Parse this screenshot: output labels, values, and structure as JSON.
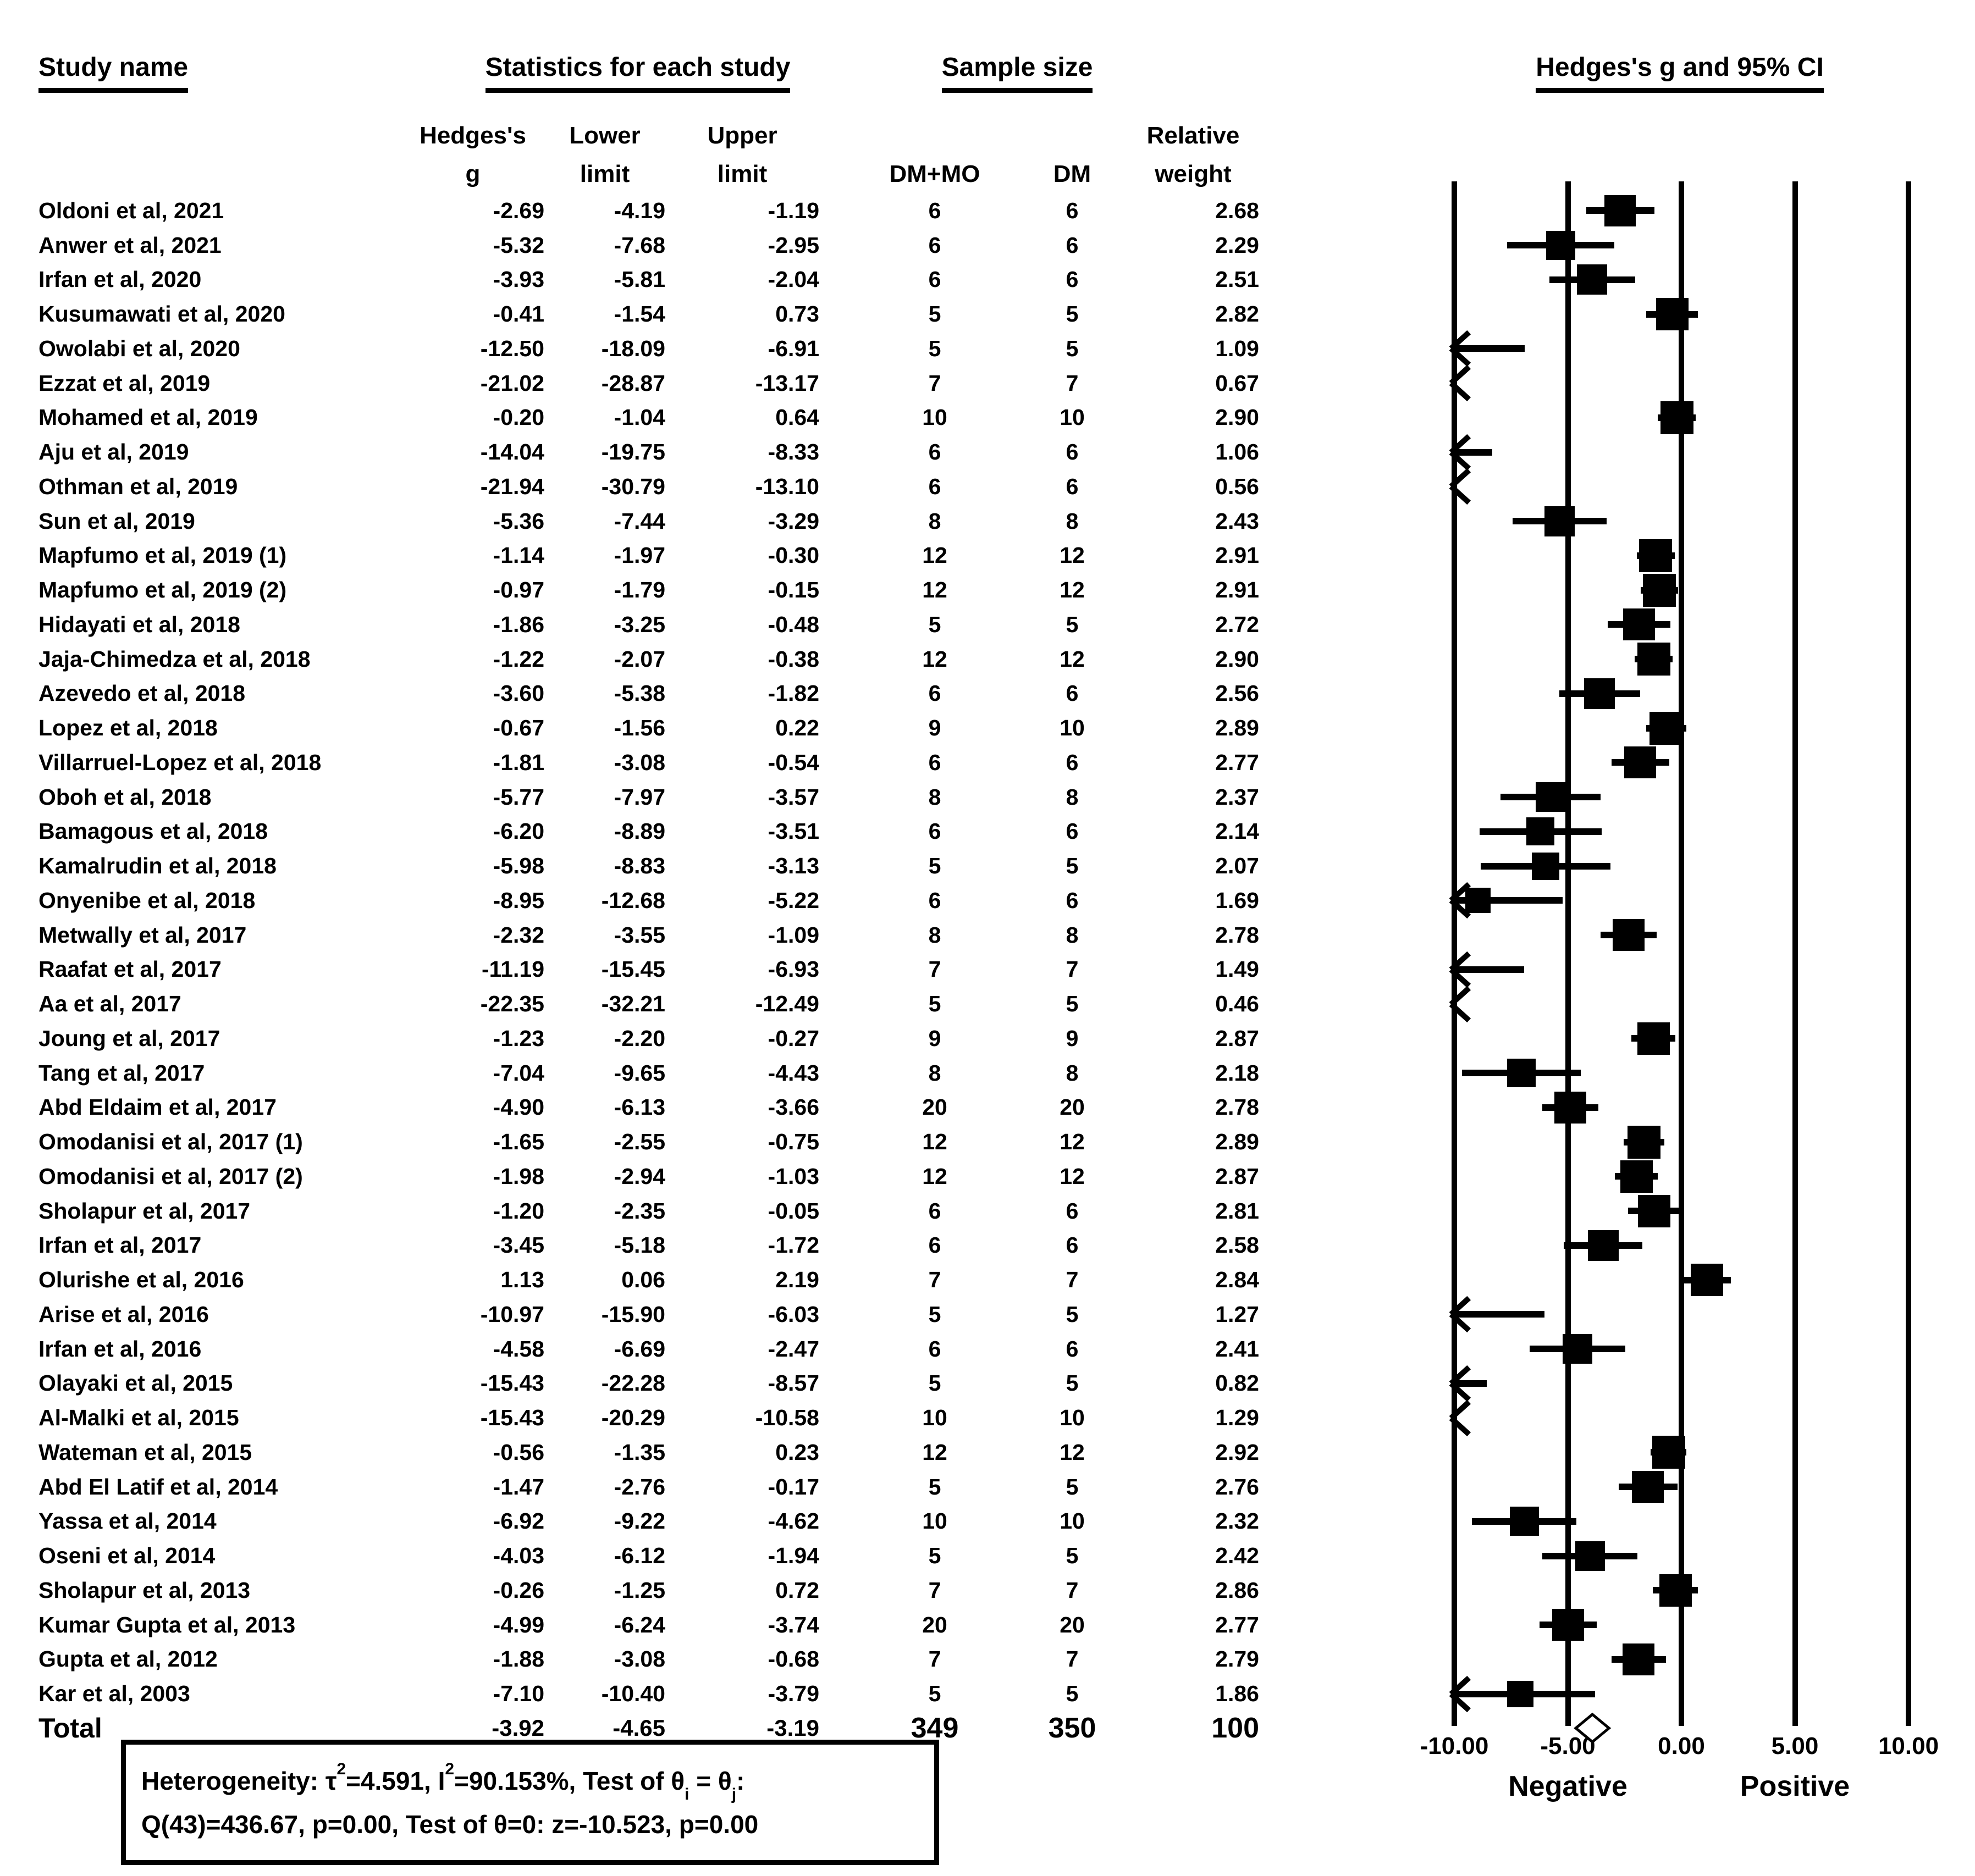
{
  "header": {
    "study_name": "Study name",
    "stats_group": "Statistics for each study",
    "sample_group": "Sample size",
    "plot_title": "Hedges's g and 95% CI",
    "sub": {
      "g1": "Hedges's",
      "g2": "g",
      "lo1": "Lower",
      "lo2": "limit",
      "up1": "Upper",
      "up2": "limit",
      "n1": "DM+MO",
      "n2": "DM",
      "w1": "Relative",
      "w2": "weight"
    }
  },
  "chart_data": {
    "type": "scatter",
    "variant": "forest-plot",
    "title": "Hedges's g and 95% CI",
    "xlim": [
      -10,
      10
    ],
    "x_tick_values": [
      -10,
      -5,
      0,
      5,
      10
    ],
    "x_ticks": [
      "-10.00",
      "-5.00",
      "0.00",
      "5.00",
      "10.00"
    ],
    "xlabel_negative": "Negative",
    "xlabel_positive": "Positive",
    "grid": "vertical-lines-at-ticks",
    "marker": "black-square-sized-by-weight",
    "studies": [
      {
        "name": "Oldoni et al, 2021",
        "g": "-2.69",
        "ll": "-4.19",
        "ul": "-1.19",
        "n1": "6",
        "n2": "6",
        "w": "2.68",
        "gv": -2.69,
        "llv": -4.19,
        "ulv": -1.19,
        "wv": 2.68
      },
      {
        "name": "Anwer et al, 2021",
        "g": "-5.32",
        "ll": "-7.68",
        "ul": "-2.95",
        "n1": "6",
        "n2": "6",
        "w": "2.29",
        "gv": -5.32,
        "llv": -7.68,
        "ulv": -2.95,
        "wv": 2.29
      },
      {
        "name": "Irfan et al, 2020",
        "g": "-3.93",
        "ll": "-5.81",
        "ul": "-2.04",
        "n1": "6",
        "n2": "6",
        "w": "2.51",
        "gv": -3.93,
        "llv": -5.81,
        "ulv": -2.04,
        "wv": 2.51
      },
      {
        "name": "Kusumawati et al, 2020",
        "g": "-0.41",
        "ll": "-1.54",
        "ul": "0.73",
        "n1": "5",
        "n2": "5",
        "w": "2.82",
        "gv": -0.41,
        "llv": -1.54,
        "ulv": 0.73,
        "wv": 2.82
      },
      {
        "name": "Owolabi et al, 2020",
        "g": "-12.50",
        "ll": "-18.09",
        "ul": "-6.91",
        "n1": "5",
        "n2": "5",
        "w": "1.09",
        "gv": -12.5,
        "llv": -18.09,
        "ulv": -6.91,
        "wv": 1.09
      },
      {
        "name": "Ezzat et al, 2019",
        "g": "-21.02",
        "ll": "-28.87",
        "ul": "-13.17",
        "n1": "7",
        "n2": "7",
        "w": "0.67",
        "gv": -21.02,
        "llv": -28.87,
        "ulv": -13.17,
        "wv": 0.67
      },
      {
        "name": "Mohamed et al, 2019",
        "g": "-0.20",
        "ll": "-1.04",
        "ul": "0.64",
        "n1": "10",
        "n2": "10",
        "w": "2.90",
        "gv": -0.2,
        "llv": -1.04,
        "ulv": 0.64,
        "wv": 2.9
      },
      {
        "name": "Aju et al, 2019",
        "g": "-14.04",
        "ll": "-19.75",
        "ul": "-8.33",
        "n1": "6",
        "n2": "6",
        "w": "1.06",
        "gv": -14.04,
        "llv": -19.75,
        "ulv": -8.33,
        "wv": 1.06
      },
      {
        "name": "Othman et al, 2019",
        "g": "-21.94",
        "ll": "-30.79",
        "ul": "-13.10",
        "n1": "6",
        "n2": "6",
        "w": "0.56",
        "gv": -21.94,
        "llv": -30.79,
        "ulv": -13.1,
        "wv": 0.56
      },
      {
        "name": "Sun et al, 2019",
        "g": "-5.36",
        "ll": "-7.44",
        "ul": "-3.29",
        "n1": "8",
        "n2": "8",
        "w": "2.43",
        "gv": -5.36,
        "llv": -7.44,
        "ulv": -3.29,
        "wv": 2.43
      },
      {
        "name": "Mapfumo et al, 2019 (1)",
        "g": "-1.14",
        "ll": "-1.97",
        "ul": "-0.30",
        "n1": "12",
        "n2": "12",
        "w": "2.91",
        "gv": -1.14,
        "llv": -1.97,
        "ulv": -0.3,
        "wv": 2.91
      },
      {
        "name": "Mapfumo et al, 2019 (2)",
        "g": "-0.97",
        "ll": "-1.79",
        "ul": "-0.15",
        "n1": "12",
        "n2": "12",
        "w": "2.91",
        "gv": -0.97,
        "llv": -1.79,
        "ulv": -0.15,
        "wv": 2.91
      },
      {
        "name": "Hidayati et al, 2018",
        "g": "-1.86",
        "ll": "-3.25",
        "ul": "-0.48",
        "n1": "5",
        "n2": "5",
        "w": "2.72",
        "gv": -1.86,
        "llv": -3.25,
        "ulv": -0.48,
        "wv": 2.72
      },
      {
        "name": "Jaja-Chimedza et al, 2018",
        "g": "-1.22",
        "ll": "-2.07",
        "ul": "-0.38",
        "n1": "12",
        "n2": "12",
        "w": "2.90",
        "gv": -1.22,
        "llv": -2.07,
        "ulv": -0.38,
        "wv": 2.9
      },
      {
        "name": "Azevedo et al, 2018",
        "g": "-3.60",
        "ll": "-5.38",
        "ul": "-1.82",
        "n1": "6",
        "n2": "6",
        "w": "2.56",
        "gv": -3.6,
        "llv": -5.38,
        "ulv": -1.82,
        "wv": 2.56
      },
      {
        "name": "Lopez et al, 2018",
        "g": "-0.67",
        "ll": "-1.56",
        "ul": "0.22",
        "n1": "9",
        "n2": "10",
        "w": "2.89",
        "gv": -0.67,
        "llv": -1.56,
        "ulv": 0.22,
        "wv": 2.89
      },
      {
        "name": "Villarruel-Lopez et al, 2018",
        "g": "-1.81",
        "ll": "-3.08",
        "ul": "-0.54",
        "n1": "6",
        "n2": "6",
        "w": "2.77",
        "gv": -1.81,
        "llv": -3.08,
        "ulv": -0.54,
        "wv": 2.77
      },
      {
        "name": "Oboh et al, 2018",
        "g": "-5.77",
        "ll": "-7.97",
        "ul": "-3.57",
        "n1": "8",
        "n2": "8",
        "w": "2.37",
        "gv": -5.77,
        "llv": -7.97,
        "ulv": -3.57,
        "wv": 2.37
      },
      {
        "name": "Bamagous et al, 2018",
        "g": "-6.20",
        "ll": "-8.89",
        "ul": "-3.51",
        "n1": "6",
        "n2": "6",
        "w": "2.14",
        "gv": -6.2,
        "llv": -8.89,
        "ulv": -3.51,
        "wv": 2.14
      },
      {
        "name": "Kamalrudin et al, 2018",
        "g": "-5.98",
        "ll": "-8.83",
        "ul": "-3.13",
        "n1": "5",
        "n2": "5",
        "w": "2.07",
        "gv": -5.98,
        "llv": -8.83,
        "ulv": -3.13,
        "wv": 2.07
      },
      {
        "name": "Onyenibe et al, 2018",
        "g": "-8.95",
        "ll": "-12.68",
        "ul": "-5.22",
        "n1": "6",
        "n2": "6",
        "w": "1.69",
        "gv": -8.95,
        "llv": -12.68,
        "ulv": -5.22,
        "wv": 1.69
      },
      {
        "name": "Metwally et al, 2017",
        "g": "-2.32",
        "ll": "-3.55",
        "ul": "-1.09",
        "n1": "8",
        "n2": "8",
        "w": "2.78",
        "gv": -2.32,
        "llv": -3.55,
        "ulv": -1.09,
        "wv": 2.78
      },
      {
        "name": "Raafat et al, 2017",
        "g": "-11.19",
        "ll": "-15.45",
        "ul": "-6.93",
        "n1": "7",
        "n2": "7",
        "w": "1.49",
        "gv": -11.19,
        "llv": -15.45,
        "ulv": -6.93,
        "wv": 1.49
      },
      {
        "name": "Aa et al, 2017",
        "g": "-22.35",
        "ll": "-32.21",
        "ul": "-12.49",
        "n1": "5",
        "n2": "5",
        "w": "0.46",
        "gv": -22.35,
        "llv": -32.21,
        "ulv": -12.49,
        "wv": 0.46
      },
      {
        "name": "Joung et al, 2017",
        "g": "-1.23",
        "ll": "-2.20",
        "ul": "-0.27",
        "n1": "9",
        "n2": "9",
        "w": "2.87",
        "gv": -1.23,
        "llv": -2.2,
        "ulv": -0.27,
        "wv": 2.87
      },
      {
        "name": "Tang et al, 2017",
        "g": "-7.04",
        "ll": "-9.65",
        "ul": "-4.43",
        "n1": "8",
        "n2": "8",
        "w": "2.18",
        "gv": -7.04,
        "llv": -9.65,
        "ulv": -4.43,
        "wv": 2.18
      },
      {
        "name": "Abd Eldaim et al, 2017",
        "g": "-4.90",
        "ll": "-6.13",
        "ul": "-3.66",
        "n1": "20",
        "n2": "20",
        "w": "2.78",
        "gv": -4.9,
        "llv": -6.13,
        "ulv": -3.66,
        "wv": 2.78
      },
      {
        "name": "Omodanisi et al, 2017 (1)",
        "g": "-1.65",
        "ll": "-2.55",
        "ul": "-0.75",
        "n1": "12",
        "n2": "12",
        "w": "2.89",
        "gv": -1.65,
        "llv": -2.55,
        "ulv": -0.75,
        "wv": 2.89
      },
      {
        "name": "Omodanisi et al, 2017 (2)",
        "g": "-1.98",
        "ll": "-2.94",
        "ul": "-1.03",
        "n1": "12",
        "n2": "12",
        "w": "2.87",
        "gv": -1.98,
        "llv": -2.94,
        "ulv": -1.03,
        "wv": 2.87
      },
      {
        "name": "Sholapur et al, 2017",
        "g": "-1.20",
        "ll": "-2.35",
        "ul": "-0.05",
        "n1": "6",
        "n2": "6",
        "w": "2.81",
        "gv": -1.2,
        "llv": -2.35,
        "ulv": -0.05,
        "wv": 2.81
      },
      {
        "name": "Irfan et al, 2017",
        "g": "-3.45",
        "ll": "-5.18",
        "ul": "-1.72",
        "n1": "6",
        "n2": "6",
        "w": "2.58",
        "gv": -3.45,
        "llv": -5.18,
        "ulv": -1.72,
        "wv": 2.58
      },
      {
        "name": "Olurishe et al, 2016",
        "g": "1.13",
        "ll": "0.06",
        "ul": "2.19",
        "n1": "7",
        "n2": "7",
        "w": "2.84",
        "gv": 1.13,
        "llv": 0.06,
        "ulv": 2.19,
        "wv": 2.84
      },
      {
        "name": "Arise et al, 2016",
        "g": "-10.97",
        "ll": "-15.90",
        "ul": "-6.03",
        "n1": "5",
        "n2": "5",
        "w": "1.27",
        "gv": -10.97,
        "llv": -15.9,
        "ulv": -6.03,
        "wv": 1.27
      },
      {
        "name": "Irfan et al, 2016",
        "g": "-4.58",
        "ll": "-6.69",
        "ul": "-2.47",
        "n1": "6",
        "n2": "6",
        "w": "2.41",
        "gv": -4.58,
        "llv": -6.69,
        "ulv": -2.47,
        "wv": 2.41
      },
      {
        "name": "Olayaki et al, 2015",
        "g": "-15.43",
        "ll": "-22.28",
        "ul": "-8.57",
        "n1": "5",
        "n2": "5",
        "w": "0.82",
        "gv": -15.43,
        "llv": -22.28,
        "ulv": -8.57,
        "wv": 0.82
      },
      {
        "name": "Al-Malki et al, 2015",
        "g": "-15.43",
        "ll": "-20.29",
        "ul": "-10.58",
        "n1": "10",
        "n2": "10",
        "w": "1.29",
        "gv": -15.43,
        "llv": -20.29,
        "ulv": -10.58,
        "wv": 1.29
      },
      {
        "name": "Wateman et al, 2015",
        "g": "-0.56",
        "ll": "-1.35",
        "ul": "0.23",
        "n1": "12",
        "n2": "12",
        "w": "2.92",
        "gv": -0.56,
        "llv": -1.35,
        "ulv": 0.23,
        "wv": 2.92
      },
      {
        "name": "Abd El Latif et al, 2014",
        "g": "-1.47",
        "ll": "-2.76",
        "ul": "-0.17",
        "n1": "5",
        "n2": "5",
        "w": "2.76",
        "gv": -1.47,
        "llv": -2.76,
        "ulv": -0.17,
        "wv": 2.76
      },
      {
        "name": "Yassa et al, 2014",
        "g": "-6.92",
        "ll": "-9.22",
        "ul": "-4.62",
        "n1": "10",
        "n2": "10",
        "w": "2.32",
        "gv": -6.92,
        "llv": -9.22,
        "ulv": -4.62,
        "wv": 2.32
      },
      {
        "name": "Oseni et al, 2014",
        "g": "-4.03",
        "ll": "-6.12",
        "ul": "-1.94",
        "n1": "5",
        "n2": "5",
        "w": "2.42",
        "gv": -4.03,
        "llv": -6.12,
        "ulv": -1.94,
        "wv": 2.42
      },
      {
        "name": "Sholapur et al, 2013",
        "g": "-0.26",
        "ll": "-1.25",
        "ul": "0.72",
        "n1": "7",
        "n2": "7",
        "w": "2.86",
        "gv": -0.26,
        "llv": -1.25,
        "ulv": 0.72,
        "wv": 2.86
      },
      {
        "name": "Kumar Gupta et al, 2013",
        "g": "-4.99",
        "ll": "-6.24",
        "ul": "-3.74",
        "n1": "20",
        "n2": "20",
        "w": "2.77",
        "gv": -4.99,
        "llv": -6.24,
        "ulv": -3.74,
        "wv": 2.77
      },
      {
        "name": "Gupta et al, 2012",
        "g": "-1.88",
        "ll": "-3.08",
        "ul": "-0.68",
        "n1": "7",
        "n2": "7",
        "w": "2.79",
        "gv": -1.88,
        "llv": -3.08,
        "ulv": -0.68,
        "wv": 2.79
      },
      {
        "name": "Kar et al, 2003",
        "g": "-7.10",
        "ll": "-10.40",
        "ul": "-3.79",
        "n1": "5",
        "n2": "5",
        "w": "1.86",
        "gv": -7.1,
        "llv": -10.4,
        "ulv": -3.79,
        "wv": 1.86
      }
    ],
    "total": {
      "name": "Total",
      "g": "-3.92",
      "ll": "-4.65",
      "ul": "-3.19",
      "n1": "349",
      "n2": "350",
      "w": "100",
      "gv": -3.92,
      "llv": -4.65,
      "ulv": -3.19
    }
  },
  "footer": {
    "l1a": "Heterogeneity: τ",
    "l1sup1": "2",
    "l1b": "=4.591,  I",
    "l1sup2": "2",
    "l1c": "=90.153%,  Test  of  θ",
    "l1sub1": "i",
    "l1d": " =  θ",
    "l1sub2": "j",
    "l1e": ":",
    "line2": "Q(43)=436.67, p=0.00, Test of θ=0: z=-10.523, p=0.00"
  },
  "colors": {
    "foreground": "#000000",
    "background": "#ffffff"
  }
}
